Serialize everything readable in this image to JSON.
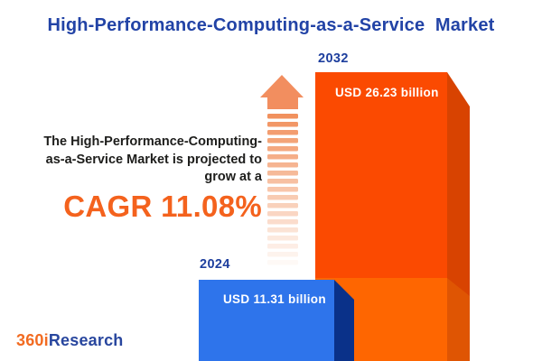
{
  "header": {
    "title": "High-Performance-Computing-as-a-Service  Market"
  },
  "insight": {
    "lines": [
      "The High-Performance-Computing-",
      "as-a-Service Market is projected to",
      "grow at a"
    ],
    "cagr_label": "CAGR 11.08%"
  },
  "bars": {
    "y2024": {
      "year": "2024",
      "value_label": "USD 11.31 billion"
    },
    "y2032": {
      "year": "2032",
      "value_label": "USD 26.23 billion"
    }
  },
  "logo": {
    "part1": "360i",
    "part2": "Research"
  },
  "colors": {
    "title_blue": "#2243A6",
    "year_label_blue": "#1E3F9E",
    "cagr_orange": "#F4621D",
    "text_dark": "#1D1D1B",
    "bar2024_front": "#2E74EB",
    "bar2024_side": "#0A3189",
    "bar2032_front": "#FB4A01",
    "bar2032_side": "#D84301",
    "bar2032_base_front": "#FE6601",
    "bar2032_base_side": "#DF5503",
    "arrow_head": "#F28E5F",
    "arrow_stripe": "#F08850",
    "logo_orange": "#F26B21",
    "logo_blue": "#28469E"
  },
  "chart_data": {
    "type": "bar",
    "title": "High-Performance-Computing-as-a-Service Market",
    "categories": [
      "2024",
      "2032"
    ],
    "values": [
      11.31,
      26.23
    ],
    "unit": "USD billion",
    "value_labels": [
      "USD 11.31 billion",
      "USD 26.23 billion"
    ],
    "cagr_percent": 11.08,
    "annotation": "The High-Performance-Computing-as-a-Service Market is projected to grow at a CAGR 11.08%",
    "bar_colors": [
      "#2E74EB",
      "#FB4A01"
    ],
    "legend": "none",
    "grid": false,
    "source_brand": "360iResearch"
  }
}
